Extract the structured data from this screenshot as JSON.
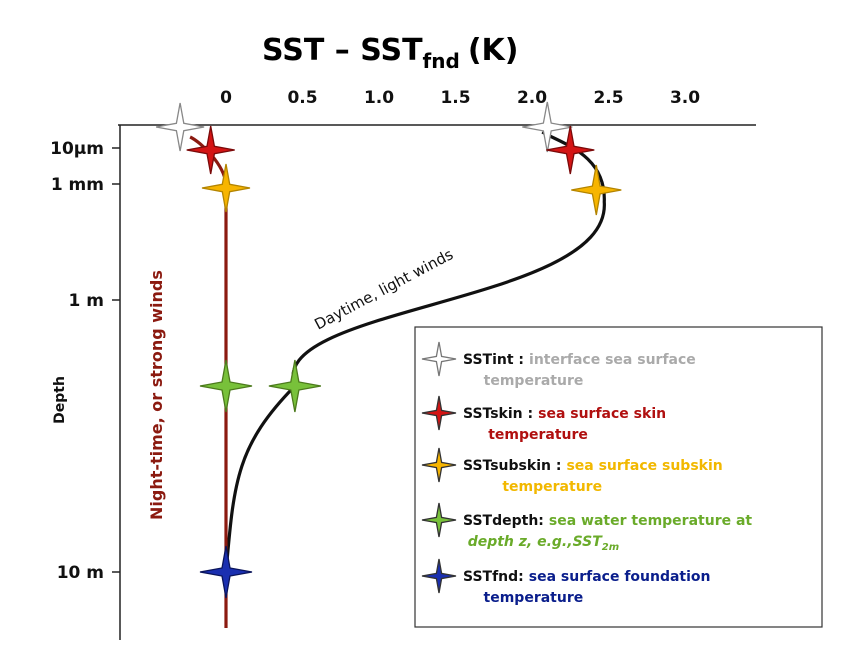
{
  "chart_data": {
    "type": "line",
    "title_main": "SST – SST",
    "title_sub": "fnd",
    "title_unit": "(K)",
    "x_ticks": [
      "0",
      "0.5",
      "1.0",
      "1.5",
      "2.0",
      "2.5",
      "3.0"
    ],
    "x_tick_values": [
      0,
      0.5,
      1.0,
      1.5,
      2.0,
      2.5,
      3.0
    ],
    "y_ticks": [
      "10µm",
      "1 mm",
      "1 m",
      "10 m"
    ],
    "ylabel": "Depth",
    "y_scale": "log",
    "series": [
      {
        "name": "Daytime, light winds",
        "color": "#111111",
        "points": [
          {
            "depth": "interface",
            "value": 2.1
          },
          {
            "depth": "10µm",
            "value": 2.25
          },
          {
            "depth": "1 mm",
            "value": 2.42
          },
          {
            "depth": "SSTdepth",
            "value": 0.45
          },
          {
            "depth": "10 m",
            "value": 0.0
          }
        ]
      },
      {
        "name": "Night-time, or strong winds",
        "color": "#8b1a10",
        "points": [
          {
            "depth": "interface",
            "value": -0.3
          },
          {
            "depth": "10µm",
            "value": -0.1
          },
          {
            "depth": "1 mm",
            "value": 0.0
          },
          {
            "depth": "SSTdepth",
            "value": 0.0
          },
          {
            "depth": "10 m",
            "value": 0.0
          }
        ]
      }
    ]
  },
  "legend": [
    {
      "name": "SSTint :",
      "desc1": "interface sea surface",
      "desc2": "temperature",
      "color": "#aaaaaa",
      "fill": "#ffffff"
    },
    {
      "name": "SSTskin :",
      "desc1": "sea surface skin",
      "desc2": "temperature",
      "color": "#b01010",
      "fill": "#d41414"
    },
    {
      "name": "SSTsubskin :",
      "desc1": "sea surface subskin",
      "desc2": "temperature",
      "color": "#f2b800",
      "fill": "#f7b500"
    },
    {
      "name": "SSTdepth:",
      "desc1": "sea water temperature at",
      "desc2": "depth z, e.g.,SST",
      "desc2_sub": "2m",
      "color": "#6aab2a",
      "fill": "#78c13a"
    },
    {
      "name": "SSTfnd:",
      "desc1": "sea surface foundation",
      "desc2": "temperature",
      "color": "#0a1e8c",
      "fill": "#1a2fb0"
    }
  ]
}
